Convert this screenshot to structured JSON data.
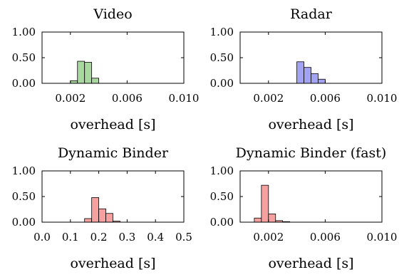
{
  "chart_data": [
    {
      "type": "bar",
      "title": "Video",
      "xlabel": "overhead [s]",
      "ylabel": "",
      "xlim": [
        0,
        0.01
      ],
      "ylim": [
        0,
        1
      ],
      "xticks": [
        "0.002",
        "0.006",
        "0.010"
      ],
      "xtick_values": [
        0.002,
        0.006,
        0.01
      ],
      "yticks": [
        "0.00",
        "0.50",
        "1.00"
      ],
      "ytick_values": [
        0,
        0.5,
        1
      ],
      "color": "#a8d8a0",
      "bins": [
        {
          "x0": 0.002,
          "x1": 0.0025,
          "value": 0.05
        },
        {
          "x0": 0.0025,
          "x1": 0.003,
          "value": 0.43
        },
        {
          "x0": 0.003,
          "x1": 0.0035,
          "value": 0.41
        },
        {
          "x0": 0.0035,
          "x1": 0.004,
          "value": 0.1
        }
      ]
    },
    {
      "type": "bar",
      "title": "Radar",
      "xlabel": "overhead [s]",
      "ylabel": "",
      "xlim": [
        0,
        0.01
      ],
      "ylim": [
        0,
        1
      ],
      "xticks": [
        "0.002",
        "0.006",
        "0.010"
      ],
      "xtick_values": [
        0.002,
        0.006,
        0.01
      ],
      "yticks": [
        "0.00",
        "0.50",
        "1.00"
      ],
      "ytick_values": [
        0,
        0.5,
        1
      ],
      "color": "#a3a3f3",
      "bins": [
        {
          "x0": 0.004,
          "x1": 0.0045,
          "value": 0.42
        },
        {
          "x0": 0.0045,
          "x1": 0.005,
          "value": 0.31
        },
        {
          "x0": 0.005,
          "x1": 0.0055,
          "value": 0.19
        },
        {
          "x0": 0.0055,
          "x1": 0.006,
          "value": 0.08
        }
      ]
    },
    {
      "type": "bar",
      "title": "Dynamic Binder",
      "xlabel": "overhead [s]",
      "ylabel": "",
      "xlim": [
        0,
        0.5
      ],
      "ylim": [
        0,
        1
      ],
      "xticks": [
        "0.0",
        "0.1",
        "0.2",
        "0.3",
        "0.4",
        "0.5"
      ],
      "xtick_values": [
        0,
        0.1,
        0.2,
        0.3,
        0.4,
        0.5
      ],
      "yticks": [
        "0.00",
        "0.50",
        "1.00"
      ],
      "ytick_values": [
        0,
        0.5,
        1
      ],
      "color": "#f7a0a0",
      "bins": [
        {
          "x0": 0.15,
          "x1": 0.175,
          "value": 0.07
        },
        {
          "x0": 0.175,
          "x1": 0.2,
          "value": 0.48
        },
        {
          "x0": 0.2,
          "x1": 0.225,
          "value": 0.26
        },
        {
          "x0": 0.225,
          "x1": 0.25,
          "value": 0.17
        },
        {
          "x0": 0.25,
          "x1": 0.275,
          "value": 0.02
        }
      ]
    },
    {
      "type": "bar",
      "title": "Dynamic Binder (fast)",
      "xlabel": "overhead [s]",
      "ylabel": "",
      "xlim": [
        0,
        0.01
      ],
      "ylim": [
        0,
        1
      ],
      "xticks": [
        "0.002",
        "0.006",
        "0.010"
      ],
      "xtick_values": [
        0.002,
        0.006,
        0.01
      ],
      "yticks": [
        "0.00",
        "0.50",
        "1.00"
      ],
      "ytick_values": [
        0,
        0.5,
        1
      ],
      "color": "#f7a0a0",
      "bins": [
        {
          "x0": 0.001,
          "x1": 0.0015,
          "value": 0.08
        },
        {
          "x0": 0.0015,
          "x1": 0.002,
          "value": 0.72
        },
        {
          "x0": 0.002,
          "x1": 0.0025,
          "value": 0.16
        },
        {
          "x0": 0.0025,
          "x1": 0.003,
          "value": 0.03
        },
        {
          "x0": 0.003,
          "x1": 0.0035,
          "value": 0.01
        }
      ]
    }
  ]
}
